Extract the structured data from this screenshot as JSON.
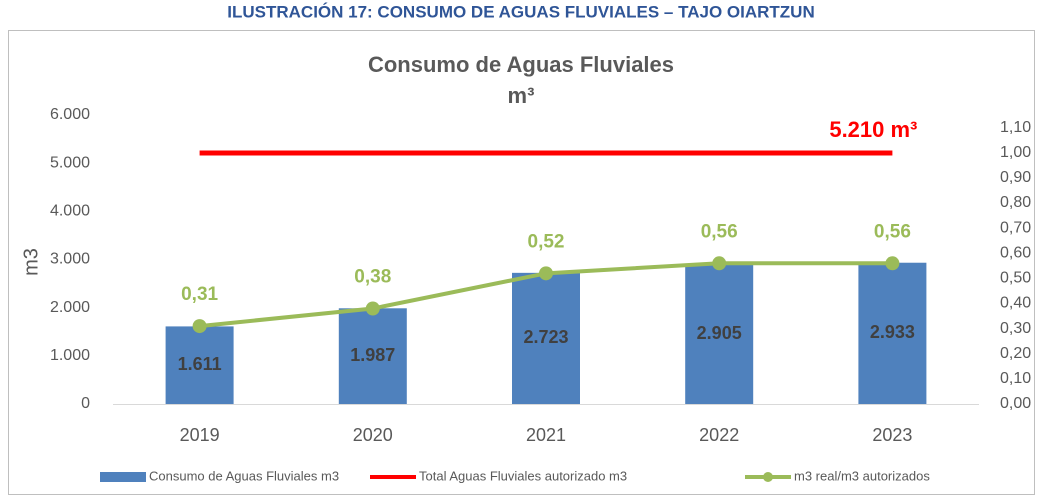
{
  "caption": "ILUSTRACIÓN 17: CONSUMO DE AGUAS FLUVIALES – TAJO OIARTZUN",
  "chart_data": {
    "type": "bar",
    "title": "Consumo de Aguas Fluviales",
    "subtitle": "m³",
    "y_label": "m3",
    "categories": [
      "2019",
      "2020",
      "2021",
      "2022",
      "2023"
    ],
    "ylim": [
      0,
      6000
    ],
    "yticks": [
      0,
      {
        "value": 1000,
        "label": "1.000"
      },
      {
        "value": 2000,
        "label": "2.000"
      },
      {
        "value": 3000,
        "label": "3.000"
      },
      {
        "value": 4000,
        "label": "4.000"
      },
      {
        "value": 5000,
        "label": "5.000"
      },
      {
        "value": 6000,
        "label": "6.000"
      }
    ],
    "y2lim": [
      0,
      1.15
    ],
    "y2ticks": [
      {
        "value": 0,
        "label": "0,00"
      },
      {
        "value": 0.1,
        "label": "0,10"
      },
      {
        "value": 0.2,
        "label": "0,20"
      },
      {
        "value": 0.3,
        "label": "0,30"
      },
      {
        "value": 0.4,
        "label": "0,40"
      },
      {
        "value": 0.5,
        "label": "0,50"
      },
      {
        "value": 0.6,
        "label": "0,60"
      },
      {
        "value": 0.7,
        "label": "0,70"
      },
      {
        "value": 0.8,
        "label": "0,80"
      },
      {
        "value": 0.9,
        "label": "0,90"
      },
      {
        "value": 1.0,
        "label": "1,00"
      },
      {
        "value": 1.1,
        "label": "1,10"
      }
    ],
    "legend": "bottom",
    "series": [
      {
        "name": "Consumo de Aguas Fluviales m3",
        "type": "bar",
        "color": "#4f81bd",
        "values": [
          1611,
          1987,
          2723,
          2905,
          2933
        ],
        "value_labels": [
          "1.611",
          "1.987",
          "2.723",
          "2.905",
          "2.933"
        ]
      },
      {
        "name": "Total Aguas Fluviales autorizado m3",
        "type": "line",
        "color": "#ff0000",
        "values": [
          5210,
          5210,
          5210,
          5210,
          5210
        ],
        "value_labels": [
          null,
          null,
          null,
          null,
          "5.210 m³"
        ]
      },
      {
        "name": "m3 real/m3 autorizados",
        "type": "line",
        "marker": true,
        "axis": "y2",
        "color": "#9bbb59",
        "values": [
          0.31,
          0.38,
          0.52,
          0.56,
          0.56
        ],
        "value_labels": [
          "0,31",
          "0,38",
          "0,52",
          "0,56",
          "0,56"
        ]
      }
    ]
  }
}
